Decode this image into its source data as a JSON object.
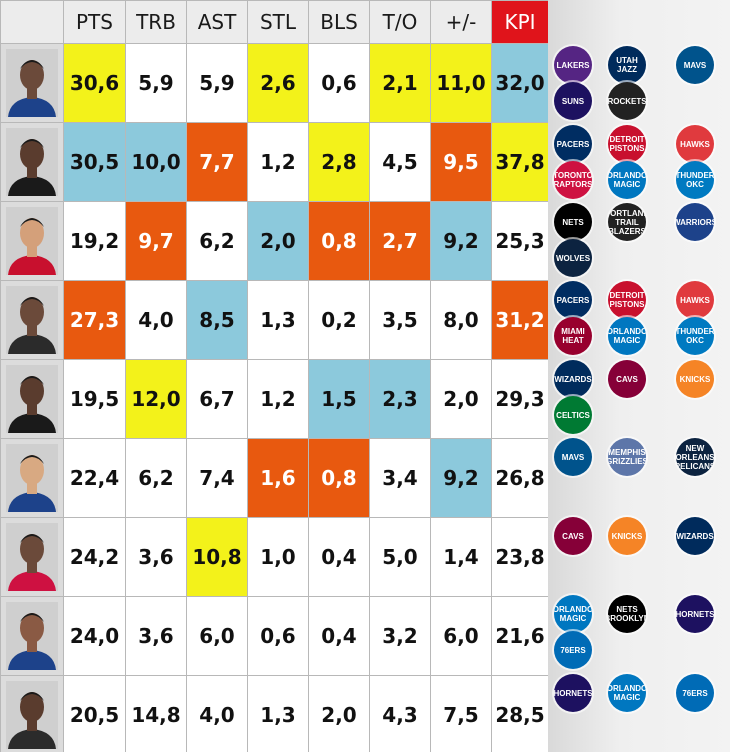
{
  "columns": [
    "PTS",
    "TRB",
    "AST",
    "STL",
    "BLS",
    "T/O",
    "+/-",
    "KPI"
  ],
  "colors": {
    "yellow": "#f3f21a",
    "orange": "#e8590f",
    "blue": "#8cc9dc",
    "white": "#ffffff",
    "kpi_header": "#e0141b"
  },
  "rows": [
    {
      "values": [
        "30,6",
        "5,9",
        "5,9",
        "2,6",
        "0,6",
        "2,1",
        "11,0",
        "32,0"
      ],
      "colors": [
        "yellow",
        "white",
        "white",
        "yellow",
        "white",
        "yellow",
        "yellow",
        "blue"
      ],
      "logos": [
        {
          "name": "lakers-logo",
          "label": "LAKERS",
          "color": "#552583"
        },
        {
          "name": "jazz-logo",
          "label": "UTAH JAZZ",
          "color": "#002b5c"
        },
        {
          "name": "mavericks-logo",
          "label": "MAVS",
          "color": "#00538c"
        },
        {
          "name": "suns-logo",
          "label": "SUNS",
          "color": "#1d1160"
        },
        {
          "name": "rockets-logo",
          "label": "ROCKETS",
          "color": "#222222"
        }
      ]
    },
    {
      "values": [
        "30,5",
        "10,0",
        "7,7",
        "1,2",
        "2,8",
        "4,5",
        "9,5",
        "37,8"
      ],
      "colors": [
        "blue",
        "blue",
        "orange",
        "white",
        "yellow",
        "white",
        "orange",
        "yellow"
      ],
      "logos": [
        {
          "name": "pacers-logo",
          "label": "PACERS",
          "color": "#002d62"
        },
        {
          "name": "pistons-logo",
          "label": "DETROIT PISTONS",
          "color": "#c8102e"
        },
        {
          "name": "hawks-logo",
          "label": "HAWKS",
          "color": "#e03a3e"
        },
        {
          "name": "raptors-logo",
          "label": "TORONTO RAPTORS",
          "color": "#ce1141"
        },
        {
          "name": "magic-logo",
          "label": "ORLANDO MAGIC",
          "color": "#0077c0"
        },
        {
          "name": "thunder-logo",
          "label": "THUNDER OKC",
          "color": "#007ac1"
        }
      ]
    },
    {
      "values": [
        "19,2",
        "9,7",
        "6,2",
        "2,0",
        "0,8",
        "2,7",
        "9,2",
        "25,3"
      ],
      "colors": [
        "white",
        "orange",
        "white",
        "blue",
        "orange",
        "orange",
        "blue",
        "white"
      ],
      "logos": [
        {
          "name": "nets-logo",
          "label": "NETS",
          "color": "#000000"
        },
        {
          "name": "blazers-logo",
          "label": "PORTLAND TRAIL BLAZERS",
          "color": "#222222"
        },
        {
          "name": "warriors-logo",
          "label": "WARRIORS",
          "color": "#1d428a"
        },
        {
          "name": "timberwolves-logo",
          "label": "WOLVES",
          "color": "#0c2340"
        }
      ]
    },
    {
      "values": [
        "27,3",
        "4,0",
        "8,5",
        "1,3",
        "0,2",
        "3,5",
        "8,0",
        "31,2"
      ],
      "colors": [
        "orange",
        "white",
        "blue",
        "white",
        "white",
        "white",
        "white",
        "orange"
      ],
      "logos": [
        {
          "name": "pacers-logo",
          "label": "PACERS",
          "color": "#002d62"
        },
        {
          "name": "pistons-logo",
          "label": "DETROIT PISTONS",
          "color": "#c8102e"
        },
        {
          "name": "hawks-logo",
          "label": "HAWKS",
          "color": "#e03a3e"
        },
        {
          "name": "heat-logo",
          "label": "MIAMI HEAT",
          "color": "#98002e"
        },
        {
          "name": "magic-logo",
          "label": "ORLANDO MAGIC",
          "color": "#0077c0"
        },
        {
          "name": "thunder-logo",
          "label": "THUNDER OKC",
          "color": "#007ac1"
        }
      ]
    },
    {
      "values": [
        "19,5",
        "12,0",
        "6,7",
        "1,2",
        "1,5",
        "2,3",
        "2,0",
        "29,3"
      ],
      "colors": [
        "white",
        "yellow",
        "white",
        "white",
        "blue",
        "blue",
        "white",
        "white"
      ],
      "logos": [
        {
          "name": "wizards-logo",
          "label": "WIZARDS",
          "color": "#002b5c"
        },
        {
          "name": "cavaliers-logo",
          "label": "CAVS",
          "color": "#860038"
        },
        {
          "name": "knicks-logo",
          "label": "KNICKS",
          "color": "#f58426"
        },
        {
          "name": "celtics-logo",
          "label": "CELTICS",
          "color": "#007a33"
        }
      ]
    },
    {
      "values": [
        "22,4",
        "6,2",
        "7,4",
        "1,6",
        "0,8",
        "3,4",
        "9,2",
        "26,8"
      ],
      "colors": [
        "white",
        "white",
        "white",
        "orange",
        "orange",
        "white",
        "blue",
        "white"
      ],
      "logos": [
        {
          "name": "mavericks-logo",
          "label": "MAVS",
          "color": "#00538c"
        },
        {
          "name": "grizzlies-logo",
          "label": "MEMPHIS GRIZZLIES",
          "color": "#5d76a9"
        },
        {
          "name": "pelicans-logo",
          "label": "NEW ORLEANS PELICANS",
          "color": "#0c2340"
        }
      ]
    },
    {
      "values": [
        "24,2",
        "3,6",
        "10,8",
        "1,0",
        "0,4",
        "5,0",
        "1,4",
        "23,8"
      ],
      "colors": [
        "white",
        "white",
        "yellow",
        "white",
        "white",
        "white",
        "white",
        "white"
      ],
      "logos": [
        {
          "name": "cavaliers-logo",
          "label": "CAVS",
          "color": "#860038"
        },
        {
          "name": "knicks-logo",
          "label": "KNICKS",
          "color": "#f58426"
        },
        {
          "name": "wizards-logo",
          "label": "WIZARDS",
          "color": "#002b5c"
        }
      ]
    },
    {
      "values": [
        "24,0",
        "3,6",
        "6,0",
        "0,6",
        "0,4",
        "3,2",
        "6,0",
        "21,6"
      ],
      "colors": [
        "white",
        "white",
        "white",
        "white",
        "white",
        "white",
        "white",
        "white"
      ],
      "logos": [
        {
          "name": "magic-logo",
          "label": "ORLANDO MAGIC",
          "color": "#0077c0"
        },
        {
          "name": "nets-logo",
          "label": "NETS BROOKLYN",
          "color": "#000000"
        },
        {
          "name": "hornets-logo",
          "label": "HORNETS",
          "color": "#1d1160"
        },
        {
          "name": "sixers-logo",
          "label": "76ERS",
          "color": "#006bb6"
        }
      ]
    },
    {
      "values": [
        "20,5",
        "14,8",
        "4,0",
        "1,3",
        "2,0",
        "4,3",
        "7,5",
        "28,5"
      ],
      "colors": [
        "white",
        "white",
        "white",
        "white",
        "white",
        "white",
        "white",
        "white"
      ],
      "logos": [
        {
          "name": "hornets-logo",
          "label": "HORNETS",
          "color": "#1d1160"
        },
        {
          "name": "magic-logo",
          "label": "ORLANDO MAGIC",
          "color": "#0077c0"
        },
        {
          "name": "sixers-logo",
          "label": "76ERS",
          "color": "#006bb6"
        }
      ]
    }
  ]
}
